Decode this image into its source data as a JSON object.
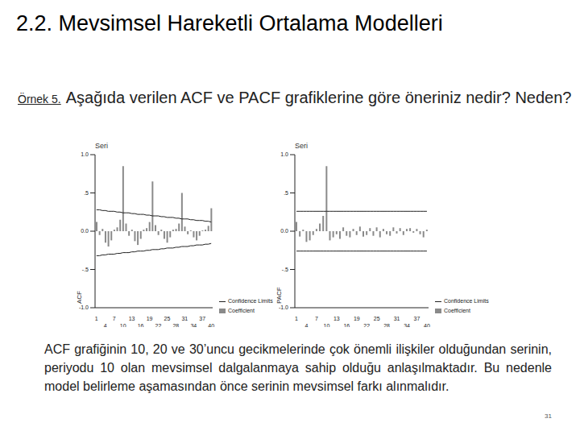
{
  "title": "2.2. Mevsimsel Hareketli Ortalama Modelleri",
  "example_label": "Örnek 5.",
  "question": "Aşağıda verilen ACF ve PACF grafiklerine göre öneriniz nedir? Neden?",
  "chart_data": [
    {
      "type": "bar",
      "title": "Seri",
      "y_label": "ACF",
      "categories": [
        "1",
        null,
        null,
        "4",
        null,
        null,
        "7",
        null,
        null,
        "10",
        null,
        null,
        "13",
        null,
        null,
        "16",
        null,
        null,
        "19",
        null,
        null,
        "22",
        null,
        null,
        "25",
        null,
        null,
        "28",
        null,
        null,
        "31",
        null,
        null,
        "34",
        null,
        null,
        "37",
        null,
        null,
        "40"
      ],
      "ylim": [
        -1,
        1
      ],
      "yticks": [
        {
          "value": -1,
          "label": "-1.0"
        },
        {
          "value": -0.5,
          "label": "-.5"
        },
        {
          "value": 0,
          "label": "0.0"
        },
        {
          "value": 0.5,
          "label": ".5"
        },
        {
          "value": 1,
          "label": "1.0"
        }
      ],
      "legend": "bottom-right",
      "series": [
        {
          "name": "Confidence Limits",
          "type": "line",
          "color": "#222222",
          "upper": [
            0.28,
            0.28,
            0.27,
            0.27,
            0.26,
            0.26,
            0.26,
            0.25,
            0.25,
            0.24,
            0.24,
            0.24,
            0.23,
            0.23,
            0.22,
            0.22,
            0.22,
            0.21,
            0.21,
            0.2,
            0.2,
            0.2,
            0.19,
            0.19,
            0.18,
            0.18,
            0.18,
            0.17,
            0.17,
            0.16,
            0.16,
            0.16,
            0.15,
            0.15,
            0.14,
            0.14,
            0.14,
            0.13,
            0.13,
            0.12
          ],
          "lower": [
            -0.32,
            -0.32,
            -0.31,
            -0.31,
            -0.3,
            -0.3,
            -0.3,
            -0.29,
            -0.29,
            -0.28,
            -0.28,
            -0.28,
            -0.27,
            -0.27,
            -0.26,
            -0.26,
            -0.26,
            -0.25,
            -0.25,
            -0.24,
            -0.24,
            -0.24,
            -0.23,
            -0.23,
            -0.22,
            -0.22,
            -0.22,
            -0.21,
            -0.21,
            -0.2,
            -0.2,
            -0.2,
            -0.19,
            -0.19,
            -0.18,
            -0.18,
            -0.18,
            -0.17,
            -0.17,
            -0.16
          ]
        },
        {
          "name": "Coefficient",
          "type": "bar",
          "color": "#8a8a8a",
          "values": [
            0.12,
            -0.05,
            0.03,
            -0.15,
            -0.2,
            -0.12,
            0.02,
            0.05,
            0.15,
            0.85,
            0.1,
            -0.06,
            0.02,
            -0.13,
            -0.18,
            -0.1,
            0.02,
            0.04,
            0.12,
            0.65,
            0.08,
            -0.05,
            0.02,
            -0.1,
            -0.15,
            -0.08,
            0.02,
            0.03,
            0.1,
            0.5,
            0.06,
            -0.04,
            0.01,
            -0.08,
            -0.12,
            -0.06,
            0.01,
            0.02,
            0.07,
            0.3
          ]
        }
      ]
    },
    {
      "type": "bar",
      "title": "Seri",
      "y_label": "PACF",
      "categories": [
        "1",
        null,
        null,
        "4",
        null,
        null,
        "7",
        null,
        null,
        "10",
        null,
        null,
        "13",
        null,
        null,
        "16",
        null,
        null,
        "19",
        null,
        null,
        "22",
        null,
        null,
        "25",
        null,
        null,
        "28",
        null,
        null,
        "31",
        null,
        null,
        "34",
        null,
        null,
        "37",
        null,
        null,
        "40"
      ],
      "ylim": [
        -1,
        1
      ],
      "yticks": [
        {
          "value": -1,
          "label": "-1.0"
        },
        {
          "value": -0.5,
          "label": "-.5"
        },
        {
          "value": 0,
          "label": "0.0"
        },
        {
          "value": 0.5,
          "label": ".5"
        },
        {
          "value": 1,
          "label": "1.0"
        }
      ],
      "legend": "bottom-right",
      "series": [
        {
          "name": "Confidence Limits",
          "type": "line",
          "color": "#222222",
          "upper": [
            0.26,
            0.26,
            0.26,
            0.26,
            0.26,
            0.26,
            0.26,
            0.26,
            0.26,
            0.26,
            0.26,
            0.26,
            0.26,
            0.26,
            0.26,
            0.26,
            0.26,
            0.26,
            0.26,
            0.26,
            0.26,
            0.26,
            0.26,
            0.26,
            0.26,
            0.26,
            0.26,
            0.26,
            0.26,
            0.26,
            0.26,
            0.26,
            0.26,
            0.26,
            0.26,
            0.26,
            0.26,
            0.26,
            0.26,
            0.26
          ],
          "lower": [
            -0.26,
            -0.26,
            -0.26,
            -0.26,
            -0.26,
            -0.26,
            -0.26,
            -0.26,
            -0.26,
            -0.26,
            -0.26,
            -0.26,
            -0.26,
            -0.26,
            -0.26,
            -0.26,
            -0.26,
            -0.26,
            -0.26,
            -0.26,
            -0.26,
            -0.26,
            -0.26,
            -0.26,
            -0.26,
            -0.26,
            -0.26,
            -0.26,
            -0.26,
            -0.26,
            -0.26,
            -0.26,
            -0.26,
            -0.26,
            -0.26,
            -0.26,
            -0.26,
            -0.26,
            -0.26,
            -0.26
          ]
        },
        {
          "name": "Coefficient",
          "type": "bar",
          "color": "#8a8a8a",
          "values": [
            0.12,
            -0.07,
            0.02,
            -0.14,
            -0.12,
            -0.05,
            0.03,
            0.1,
            0.2,
            0.85,
            -0.12,
            -0.08,
            -0.04,
            -0.1,
            0.05,
            -0.06,
            -0.08,
            0.03,
            -0.05,
            0.06,
            -0.07,
            -0.05,
            0.04,
            -0.06,
            0.05,
            -0.08,
            0.03,
            -0.04,
            -0.06,
            0.05,
            -0.03,
            0.04,
            -0.05,
            0.03,
            0.04,
            -0.02,
            0.03,
            -0.04,
            -0.08,
            0.02
          ]
        }
      ]
    }
  ],
  "answer": "ACF grafiğinin 10, 20 ve 30’uncu gecikmelerinde çok önemli ilişkiler olduğundan serinin, periyodu 10 olan mevsimsel dalgalanmaya sahip olduğu anlaşılmaktadır. Bu nedenle model belirleme aşamasından önce serinin mevsimsel farkı alınmalıdır.",
  "page_number": "31"
}
